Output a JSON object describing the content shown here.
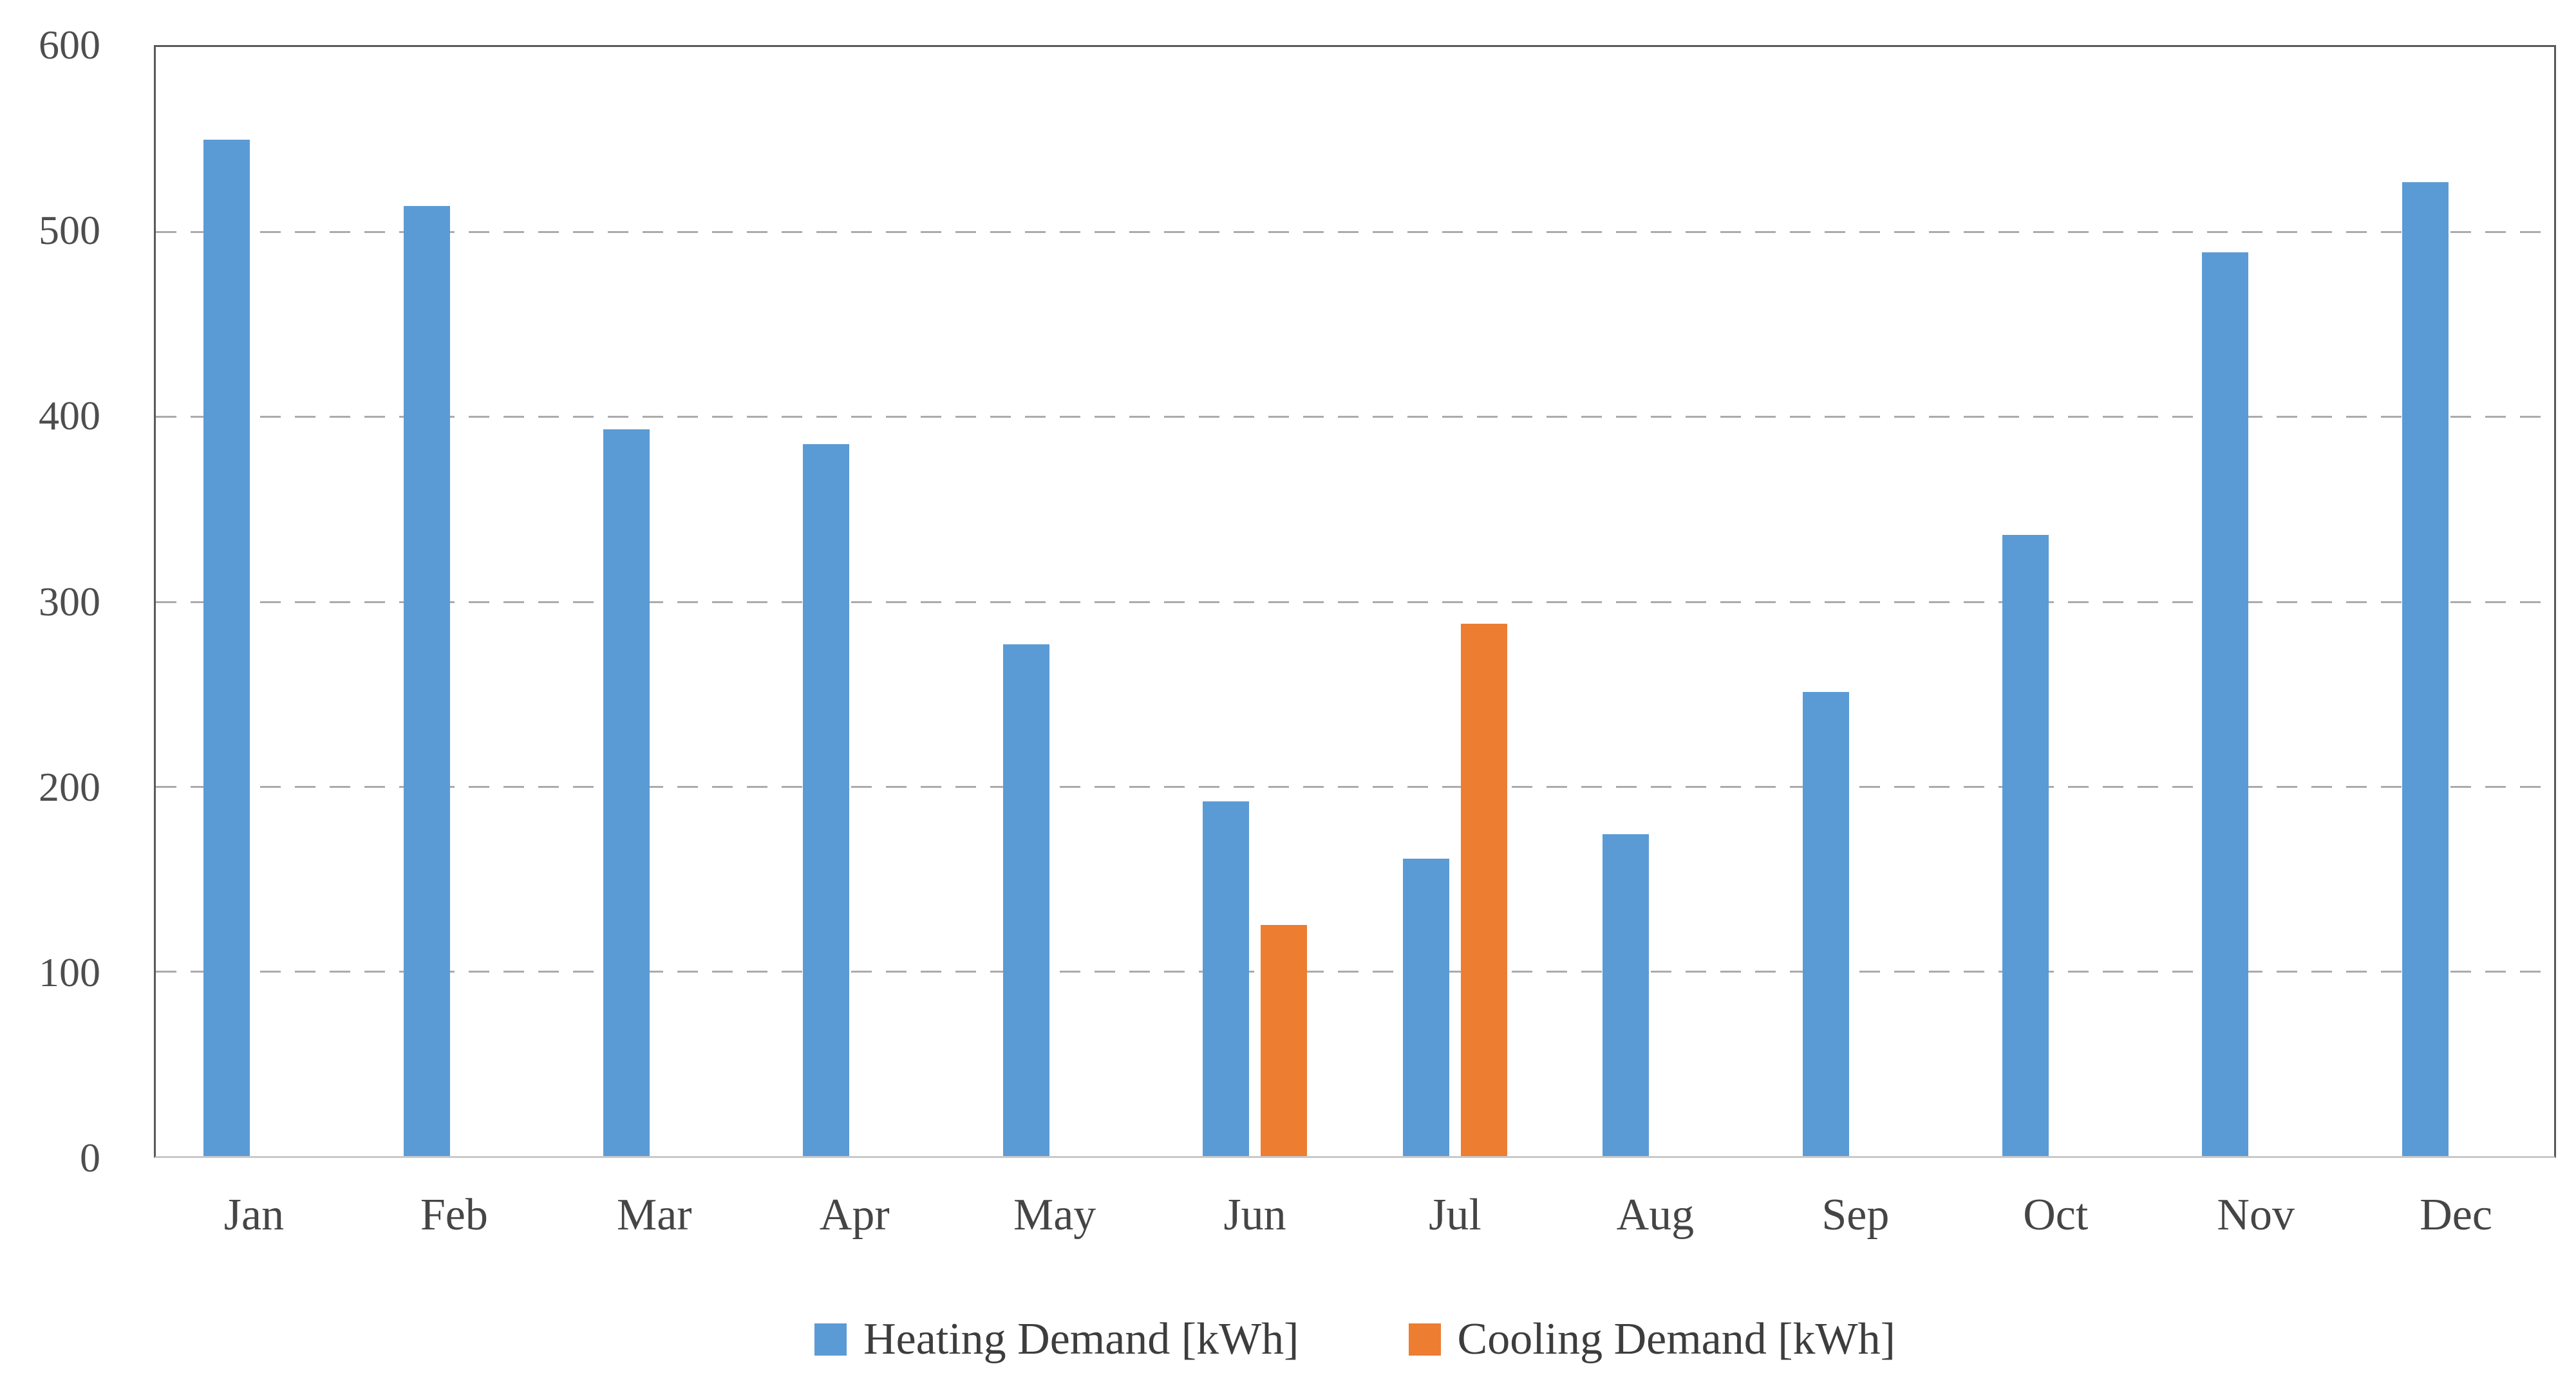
{
  "chart_data": {
    "type": "bar",
    "title": "",
    "categories": [
      "Jan",
      "Feb",
      "Mar",
      "Apr",
      "May",
      "Jun",
      "Jul",
      "Aug",
      "Sep",
      "Oct",
      "Nov",
      "Dec"
    ],
    "series": [
      {
        "name": "Heating Demand [kWh]",
        "color": "#5B9BD5",
        "values": [
          550,
          514,
          393,
          385,
          277,
          192,
          161,
          174,
          251,
          336,
          489,
          527
        ]
      },
      {
        "name": "Cooling Demand [kWh]",
        "color": "#ED7D31",
        "values": [
          0,
          0,
          0,
          0,
          0,
          125,
          288,
          0,
          0,
          0,
          0,
          0
        ]
      }
    ],
    "xlabel": "",
    "ylabel": "",
    "ylim": [
      0,
      600
    ],
    "yticks": [
      0,
      100,
      200,
      300,
      400,
      500,
      600
    ],
    "grid": "horizontal-dashed",
    "legend_position": "bottom"
  },
  "legend": {
    "items": [
      {
        "label": "Heating Demand [kWh]",
        "color": "#5B9BD5"
      },
      {
        "label": "Cooling Demand [kWh]",
        "color": "#ED7D31"
      }
    ]
  },
  "colors": {
    "heating": "#5B9BD5",
    "cooling": "#ED7D31",
    "gridline": "#ababab",
    "plot_border": "#595959",
    "bottom_axis": "#c9c9c9",
    "tick_text": "#4d4d4d"
  }
}
